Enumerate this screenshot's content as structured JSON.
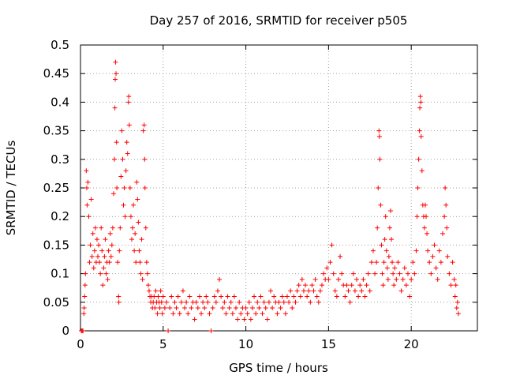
{
  "chart_data": {
    "type": "scatter",
    "title": "Day 257 of 2016, SRMTID for receiver p505",
    "xlabel": "GPS time / hours",
    "ylabel": "SRMTID / TECUs",
    "xlim": [
      0,
      24
    ],
    "ylim": [
      0,
      0.5
    ],
    "x_ticks": [
      0,
      5,
      10,
      15,
      20
    ],
    "x_tick_labels": [
      "0",
      "5",
      "10",
      "15",
      "20"
    ],
    "y_ticks": [
      0,
      0.05,
      0.1,
      0.15,
      0.2,
      0.25,
      0.3,
      0.35,
      0.4,
      0.45,
      0.5
    ],
    "y_tick_labels": [
      "0",
      "0.05",
      "0.1",
      "0.15",
      "0.2",
      "0.25",
      "0.3",
      "0.35",
      "0.4",
      "0.45",
      "0.5"
    ],
    "grid": true,
    "marker": "+",
    "color": "#ff0000",
    "series": [
      {
        "name": "SRMTID",
        "points": [
          [
            0.05,
            0.0
          ],
          [
            0.1,
            0.0
          ],
          [
            0.15,
            0.0
          ],
          [
            0.2,
            0.03
          ],
          [
            0.22,
            0.04
          ],
          [
            0.25,
            0.06
          ],
          [
            0.28,
            0.08
          ],
          [
            0.3,
            0.1
          ],
          [
            0.35,
            0.28
          ],
          [
            0.38,
            0.25
          ],
          [
            0.4,
            0.22
          ],
          [
            0.45,
            0.26
          ],
          [
            0.5,
            0.2
          ],
          [
            0.55,
            0.12
          ],
          [
            0.6,
            0.15
          ],
          [
            0.65,
            0.23
          ],
          [
            0.7,
            0.13
          ],
          [
            0.75,
            0.17
          ],
          [
            0.8,
            0.11
          ],
          [
            0.85,
            0.14
          ],
          [
            0.9,
            0.18
          ],
          [
            0.95,
            0.12
          ],
          [
            1.0,
            0.16
          ],
          [
            1.05,
            0.13
          ],
          [
            1.1,
            0.15
          ],
          [
            1.15,
            0.12
          ],
          [
            1.2,
            0.1
          ],
          [
            1.25,
            0.18
          ],
          [
            1.3,
            0.14
          ],
          [
            1.35,
            0.08
          ],
          [
            1.4,
            0.11
          ],
          [
            1.45,
            0.13
          ],
          [
            1.5,
            0.16
          ],
          [
            1.55,
            0.1
          ],
          [
            1.6,
            0.12
          ],
          [
            1.65,
            0.09
          ],
          [
            1.7,
            0.14
          ],
          [
            1.75,
            0.12
          ],
          [
            1.8,
            0.17
          ],
          [
            1.85,
            0.13
          ],
          [
            1.9,
            0.15
          ],
          [
            1.95,
            0.18
          ],
          [
            2.0,
            0.24
          ],
          [
            2.05,
            0.3
          ],
          [
            2.08,
            0.39
          ],
          [
            2.1,
            0.44
          ],
          [
            2.12,
            0.47
          ],
          [
            2.15,
            0.45
          ],
          [
            2.18,
            0.33
          ],
          [
            2.2,
            0.25
          ],
          [
            2.25,
            0.12
          ],
          [
            2.3,
            0.06
          ],
          [
            2.32,
            0.05
          ],
          [
            2.35,
            0.14
          ],
          [
            2.4,
            0.18
          ],
          [
            2.45,
            0.27
          ],
          [
            2.5,
            0.35
          ],
          [
            2.55,
            0.3
          ],
          [
            2.6,
            0.22
          ],
          [
            2.65,
            0.25
          ],
          [
            2.7,
            0.2
          ],
          [
            2.75,
            0.28
          ],
          [
            2.8,
            0.33
          ],
          [
            2.85,
            0.31
          ],
          [
            2.9,
            0.4
          ],
          [
            2.92,
            0.41
          ],
          [
            2.95,
            0.36
          ],
          [
            3.0,
            0.25
          ],
          [
            3.05,
            0.2
          ],
          [
            3.1,
            0.16
          ],
          [
            3.15,
            0.18
          ],
          [
            3.2,
            0.22
          ],
          [
            3.25,
            0.14
          ],
          [
            3.3,
            0.17
          ],
          [
            3.35,
            0.12
          ],
          [
            3.4,
            0.26
          ],
          [
            3.45,
            0.23
          ],
          [
            3.5,
            0.19
          ],
          [
            3.55,
            0.14
          ],
          [
            3.6,
            0.12
          ],
          [
            3.65,
            0.1
          ],
          [
            3.7,
            0.16
          ],
          [
            3.75,
            0.09
          ],
          [
            3.8,
            0.35
          ],
          [
            3.85,
            0.36
          ],
          [
            3.88,
            0.3
          ],
          [
            3.9,
            0.25
          ],
          [
            3.95,
            0.18
          ],
          [
            4.0,
            0.12
          ],
          [
            4.05,
            0.1
          ],
          [
            4.1,
            0.08
          ],
          [
            4.15,
            0.07
          ],
          [
            4.2,
            0.06
          ],
          [
            4.25,
            0.05
          ],
          [
            4.3,
            0.06
          ],
          [
            4.35,
            0.04
          ],
          [
            4.4,
            0.05
          ],
          [
            4.45,
            0.06
          ],
          [
            4.5,
            0.04
          ],
          [
            4.55,
            0.07
          ],
          [
            4.6,
            0.05
          ],
          [
            4.65,
            0.03
          ],
          [
            4.7,
            0.06
          ],
          [
            4.75,
            0.05
          ],
          [
            4.8,
            0.04
          ],
          [
            4.85,
            0.07
          ],
          [
            4.9,
            0.05
          ],
          [
            4.95,
            0.03
          ],
          [
            5.0,
            0.06
          ],
          [
            5.1,
            0.04
          ],
          [
            5.2,
            0.05
          ],
          [
            5.3,
            0.0
          ],
          [
            5.4,
            0.04
          ],
          [
            5.5,
            0.06
          ],
          [
            5.6,
            0.03
          ],
          [
            5.7,
            0.05
          ],
          [
            5.8,
            0.04
          ],
          [
            5.9,
            0.06
          ],
          [
            6.0,
            0.03
          ],
          [
            6.1,
            0.05
          ],
          [
            6.2,
            0.07
          ],
          [
            6.3,
            0.04
          ],
          [
            6.4,
            0.05
          ],
          [
            6.5,
            0.03
          ],
          [
            6.6,
            0.06
          ],
          [
            6.7,
            0.04
          ],
          [
            6.8,
            0.05
          ],
          [
            6.9,
            0.02
          ],
          [
            7.0,
            0.05
          ],
          [
            7.1,
            0.04
          ],
          [
            7.2,
            0.06
          ],
          [
            7.3,
            0.03
          ],
          [
            7.4,
            0.05
          ],
          [
            7.5,
            0.04
          ],
          [
            7.6,
            0.06
          ],
          [
            7.7,
            0.05
          ],
          [
            7.8,
            0.03
          ],
          [
            7.9,
            0.0
          ],
          [
            8.0,
            0.04
          ],
          [
            8.1,
            0.06
          ],
          [
            8.2,
            0.05
          ],
          [
            8.3,
            0.07
          ],
          [
            8.4,
            0.09
          ],
          [
            8.5,
            0.06
          ],
          [
            8.6,
            0.04
          ],
          [
            8.7,
            0.05
          ],
          [
            8.8,
            0.03
          ],
          [
            8.9,
            0.06
          ],
          [
            9.0,
            0.04
          ],
          [
            9.1,
            0.05
          ],
          [
            9.2,
            0.03
          ],
          [
            9.3,
            0.06
          ],
          [
            9.4,
            0.04
          ],
          [
            9.5,
            0.02
          ],
          [
            9.6,
            0.05
          ],
          [
            9.7,
            0.03
          ],
          [
            9.8,
            0.04
          ],
          [
            9.9,
            0.02
          ],
          [
            10.0,
            0.04
          ],
          [
            10.1,
            0.03
          ],
          [
            10.2,
            0.05
          ],
          [
            10.3,
            0.02
          ],
          [
            10.4,
            0.04
          ],
          [
            10.5,
            0.06
          ],
          [
            10.6,
            0.03
          ],
          [
            10.7,
            0.05
          ],
          [
            10.8,
            0.04
          ],
          [
            10.9,
            0.06
          ],
          [
            11.0,
            0.03
          ],
          [
            11.1,
            0.05
          ],
          [
            11.2,
            0.04
          ],
          [
            11.3,
            0.02
          ],
          [
            11.4,
            0.05
          ],
          [
            11.5,
            0.07
          ],
          [
            11.6,
            0.04
          ],
          [
            11.7,
            0.06
          ],
          [
            11.8,
            0.05
          ],
          [
            11.9,
            0.03
          ],
          [
            12.0,
            0.05
          ],
          [
            12.1,
            0.04
          ],
          [
            12.2,
            0.06
          ],
          [
            12.3,
            0.05
          ],
          [
            12.4,
            0.03
          ],
          [
            12.5,
            0.06
          ],
          [
            12.6,
            0.05
          ],
          [
            12.7,
            0.07
          ],
          [
            12.8,
            0.04
          ],
          [
            12.9,
            0.06
          ],
          [
            13.0,
            0.05
          ],
          [
            13.1,
            0.07
          ],
          [
            13.2,
            0.08
          ],
          [
            13.3,
            0.06
          ],
          [
            13.4,
            0.09
          ],
          [
            13.5,
            0.07
          ],
          [
            13.6,
            0.08
          ],
          [
            13.7,
            0.06
          ],
          [
            13.8,
            0.07
          ],
          [
            13.9,
            0.05
          ],
          [
            14.0,
            0.08
          ],
          [
            14.1,
            0.07
          ],
          [
            14.2,
            0.09
          ],
          [
            14.3,
            0.06
          ],
          [
            14.4,
            0.05
          ],
          [
            14.5,
            0.07
          ],
          [
            14.6,
            0.08
          ],
          [
            14.7,
            0.1
          ],
          [
            14.8,
            0.09
          ],
          [
            14.9,
            0.11
          ],
          [
            15.0,
            0.09
          ],
          [
            15.1,
            0.12
          ],
          [
            15.2,
            0.15
          ],
          [
            15.3,
            0.1
          ],
          [
            15.4,
            0.07
          ],
          [
            15.5,
            0.06
          ],
          [
            15.6,
            0.09
          ],
          [
            15.7,
            0.13
          ],
          [
            15.8,
            0.1
          ],
          [
            15.9,
            0.08
          ],
          [
            16.0,
            0.06
          ],
          [
            16.1,
            0.08
          ],
          [
            16.2,
            0.07
          ],
          [
            16.3,
            0.05
          ],
          [
            16.4,
            0.08
          ],
          [
            16.5,
            0.1
          ],
          [
            16.6,
            0.07
          ],
          [
            16.7,
            0.09
          ],
          [
            16.8,
            0.06
          ],
          [
            16.9,
            0.08
          ],
          [
            17.0,
            0.07
          ],
          [
            17.1,
            0.09
          ],
          [
            17.2,
            0.06
          ],
          [
            17.3,
            0.08
          ],
          [
            17.4,
            0.1
          ],
          [
            17.5,
            0.07
          ],
          [
            17.6,
            0.12
          ],
          [
            17.7,
            0.14
          ],
          [
            17.8,
            0.1
          ],
          [
            17.9,
            0.12
          ],
          [
            17.95,
            0.18
          ],
          [
            18.0,
            0.25
          ],
          [
            18.05,
            0.35
          ],
          [
            18.08,
            0.34
          ],
          [
            18.1,
            0.3
          ],
          [
            18.15,
            0.22
          ],
          [
            18.2,
            0.15
          ],
          [
            18.25,
            0.1
          ],
          [
            18.3,
            0.08
          ],
          [
            18.35,
            0.12
          ],
          [
            18.4,
            0.16
          ],
          [
            18.45,
            0.2
          ],
          [
            18.5,
            0.14
          ],
          [
            18.55,
            0.11
          ],
          [
            18.6,
            0.09
          ],
          [
            18.65,
            0.13
          ],
          [
            18.7,
            0.18
          ],
          [
            18.75,
            0.21
          ],
          [
            18.8,
            0.16
          ],
          [
            18.85,
            0.12
          ],
          [
            18.9,
            0.1
          ],
          [
            18.95,
            0.08
          ],
          [
            19.0,
            0.11
          ],
          [
            19.1,
            0.09
          ],
          [
            19.2,
            0.12
          ],
          [
            19.3,
            0.1
          ],
          [
            19.4,
            0.07
          ],
          [
            19.5,
            0.09
          ],
          [
            19.6,
            0.11
          ],
          [
            19.7,
            0.08
          ],
          [
            19.8,
            0.1
          ],
          [
            19.9,
            0.06
          ],
          [
            20.0,
            0.09
          ],
          [
            20.1,
            0.12
          ],
          [
            20.2,
            0.1
          ],
          [
            20.3,
            0.14
          ],
          [
            20.35,
            0.2
          ],
          [
            20.4,
            0.25
          ],
          [
            20.45,
            0.3
          ],
          [
            20.5,
            0.35
          ],
          [
            20.52,
            0.39
          ],
          [
            20.55,
            0.41
          ],
          [
            20.58,
            0.4
          ],
          [
            20.6,
            0.34
          ],
          [
            20.65,
            0.28
          ],
          [
            20.7,
            0.22
          ],
          [
            20.75,
            0.2
          ],
          [
            20.8,
            0.18
          ],
          [
            20.85,
            0.22
          ],
          [
            20.9,
            0.2
          ],
          [
            20.95,
            0.17
          ],
          [
            21.0,
            0.14
          ],
          [
            21.1,
            0.12
          ],
          [
            21.2,
            0.1
          ],
          [
            21.3,
            0.13
          ],
          [
            21.4,
            0.15
          ],
          [
            21.5,
            0.11
          ],
          [
            21.6,
            0.09
          ],
          [
            21.7,
            0.14
          ],
          [
            21.8,
            0.12
          ],
          [
            21.9,
            0.17
          ],
          [
            22.0,
            0.2
          ],
          [
            22.05,
            0.25
          ],
          [
            22.1,
            0.22
          ],
          [
            22.15,
            0.18
          ],
          [
            22.2,
            0.13
          ],
          [
            22.3,
            0.1
          ],
          [
            22.4,
            0.08
          ],
          [
            22.5,
            0.12
          ],
          [
            22.6,
            0.09
          ],
          [
            22.65,
            0.06
          ],
          [
            22.7,
            0.08
          ],
          [
            22.75,
            0.04
          ],
          [
            22.8,
            0.05
          ],
          [
            22.85,
            0.03
          ]
        ]
      }
    ]
  }
}
